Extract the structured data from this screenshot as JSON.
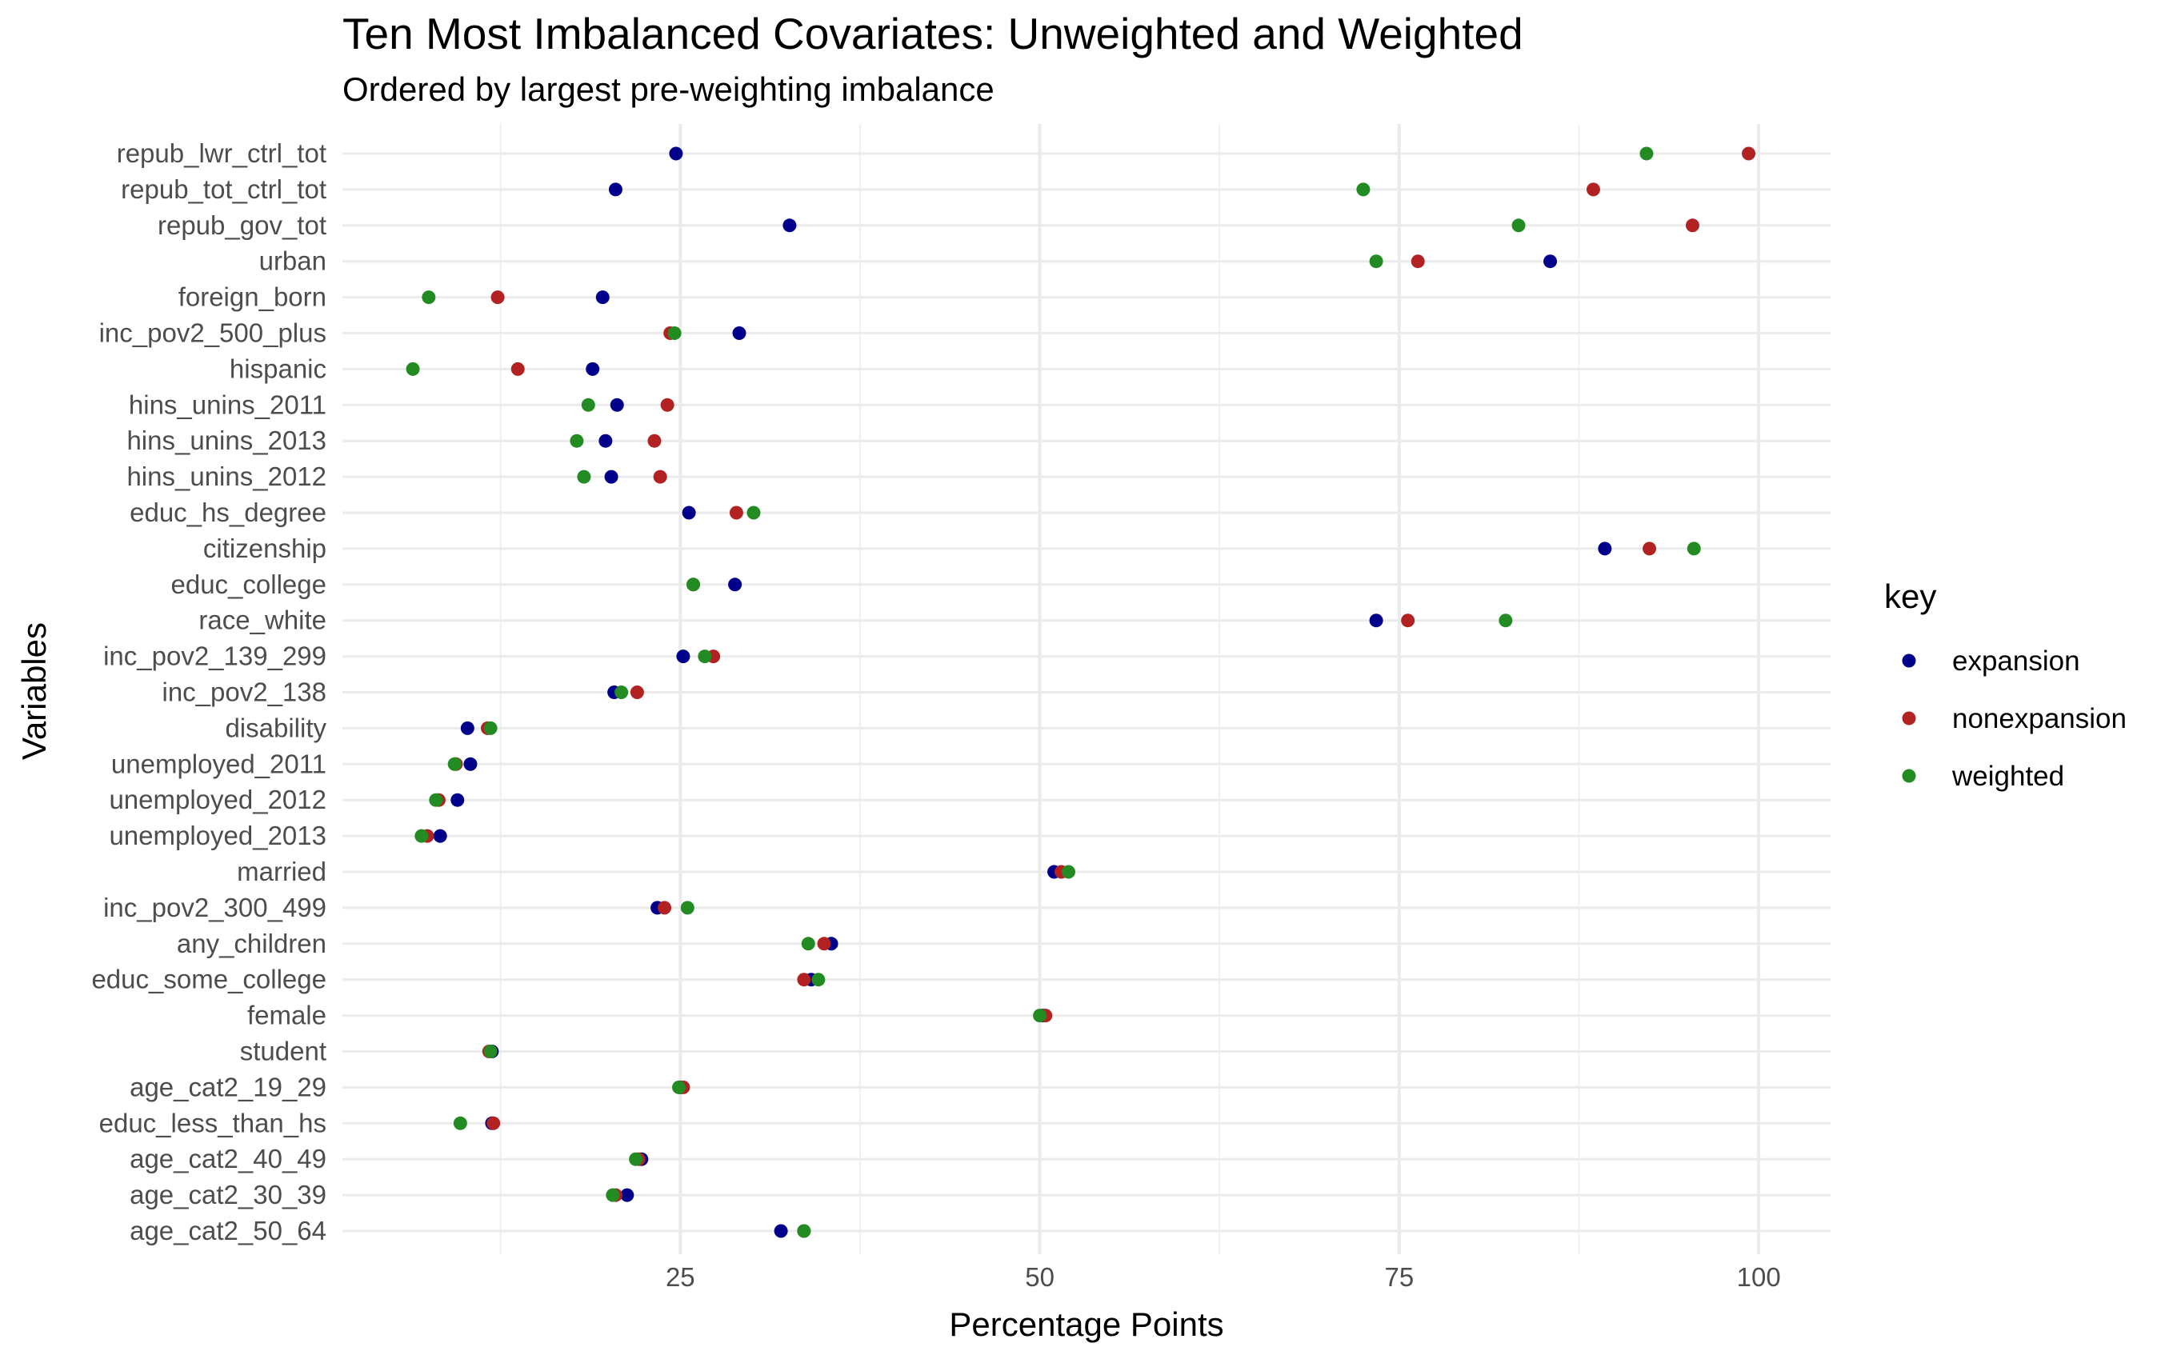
{
  "chart_data": {
    "type": "scatter",
    "title": "Ten Most Imbalanced Covariates: Unweighted and Weighted",
    "subtitle": "Ordered by largest pre-weighting imbalance",
    "xlabel": "Percentage Points",
    "ylabel": "Variables",
    "xlim": [
      1.5,
      105
    ],
    "x_ticks": [
      25,
      50,
      75,
      100
    ],
    "grid": true,
    "legend": {
      "title": "key",
      "position": "right"
    },
    "categories": [
      "repub_lwr_ctrl_tot",
      "repub_tot_ctrl_tot",
      "repub_gov_tot",
      "urban",
      "foreign_born",
      "inc_pov2_500_plus",
      "hispanic",
      "hins_unins_2011",
      "hins_unins_2013",
      "hins_unins_2012",
      "educ_hs_degree",
      "citizenship",
      "educ_college",
      "race_white",
      "inc_pov2_139_299",
      "inc_pov2_138",
      "disability",
      "unemployed_2011",
      "unemployed_2012",
      "unemployed_2013",
      "married",
      "inc_pov2_300_499",
      "any_children",
      "educ_some_college",
      "female",
      "student",
      "age_cat2_19_29",
      "educ_less_than_hs",
      "age_cat2_40_49",
      "age_cat2_30_39",
      "age_cat2_50_64"
    ],
    "series": [
      {
        "name": "expansion",
        "color": "#00008B",
        "values": [
          24.7,
          20.5,
          32.6,
          85.5,
          19.6,
          29.1,
          18.9,
          20.6,
          19.8,
          20.2,
          25.6,
          89.3,
          28.8,
          73.4,
          25.2,
          20.4,
          10.2,
          10.4,
          9.5,
          8.3,
          51.0,
          23.4,
          35.5,
          34.1,
          50.2,
          11.9,
          25.0,
          11.9,
          22.3,
          21.3,
          32.0
        ]
      },
      {
        "name": "nonexpansion",
        "color": "#B22222",
        "values": [
          99.3,
          88.5,
          95.4,
          76.3,
          12.3,
          24.3,
          13.7,
          24.1,
          23.2,
          23.6,
          28.9,
          92.4,
          25.9,
          75.6,
          27.3,
          22.0,
          11.6,
          9.4,
          8.2,
          7.4,
          51.5,
          23.9,
          35.0,
          33.6,
          50.4,
          11.7,
          25.2,
          12.0,
          22.1,
          20.5,
          33.6
        ]
      },
      {
        "name": "weighted",
        "color": "#228B22",
        "values": [
          92.2,
          72.5,
          83.3,
          73.4,
          7.5,
          24.6,
          6.4,
          18.6,
          17.8,
          18.3,
          30.1,
          95.5,
          25.9,
          82.4,
          26.7,
          20.9,
          11.8,
          9.3,
          8.0,
          7.0,
          52.0,
          25.5,
          33.9,
          34.6,
          50.0,
          11.8,
          24.9,
          9.7,
          21.9,
          20.3,
          33.6
        ]
      }
    ]
  }
}
